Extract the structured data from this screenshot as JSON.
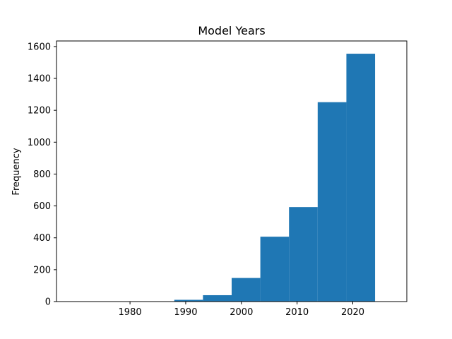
{
  "chart_data": {
    "type": "bar",
    "title": "Model Years",
    "xlabel": "",
    "ylabel": "Frequency",
    "bin_edges": [
      1972.5,
      1977.65,
      1982.8,
      1987.95,
      1993.1,
      1998.25,
      2003.4,
      2008.55,
      2013.7,
      2018.85,
      2024.0
    ],
    "values": [
      1,
      0,
      1,
      11,
      40,
      148,
      407,
      593,
      1251,
      1555
    ],
    "xlim": [
      1966.8,
      2029.7
    ],
    "ylim": [
      0,
      1635
    ],
    "xticks": [
      1980,
      1990,
      2000,
      2010,
      2020
    ],
    "yticks": [
      0,
      200,
      400,
      600,
      800,
      1000,
      1200,
      1400,
      1600
    ],
    "grid": false,
    "colors": {
      "bar": "#1f77b4",
      "axes": "#000000",
      "background": "#ffffff"
    }
  }
}
